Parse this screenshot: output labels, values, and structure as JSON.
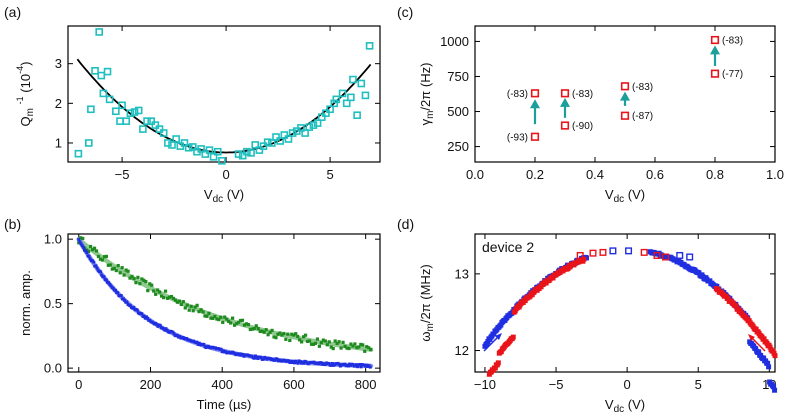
{
  "figure": {
    "panels": [
      "(a)",
      "(b)",
      "(c)",
      "(d)"
    ],
    "device_label": "device 2"
  },
  "colors": {
    "cyan": "#1fbfbf",
    "teal_arrow": "#1a9f9a",
    "green": "#1f8a1f",
    "light_green": "#8fc98f",
    "blue": "#1f2fe0",
    "light_blue": "#8b93ee",
    "red": "#e8141a",
    "black": "#000000"
  },
  "chart_data": [
    {
      "id": "a",
      "type": "scatter",
      "xlabel": "V_dc (V)",
      "ylabel": "Q_m^-1 (10^-4)",
      "xlim": [
        -7.6,
        7.4
      ],
      "ylim": [
        0.52,
        3.95
      ],
      "xticks": [
        -5,
        0,
        5
      ],
      "yticks": [
        1,
        2,
        3
      ],
      "xtick_labels": [
        "−5",
        "0",
        "5"
      ],
      "ytick_labels": [
        "1",
        "2",
        "3"
      ],
      "series": [
        {
          "marker": "open-square",
          "color": "cyan",
          "points": [
            [
              -7.1,
              0.73
            ],
            [
              -6.6,
              1.0
            ],
            [
              -6.5,
              1.85
            ],
            [
              -6.3,
              2.82
            ],
            [
              -6.1,
              3.8
            ],
            [
              -6.0,
              2.7
            ],
            [
              -5.9,
              2.25
            ],
            [
              -5.7,
              2.8
            ],
            [
              -5.6,
              2.1
            ],
            [
              -5.3,
              1.8
            ],
            [
              -5.1,
              1.55
            ],
            [
              -5.0,
              1.95
            ],
            [
              -4.8,
              1.55
            ],
            [
              -4.6,
              1.75
            ],
            [
              -4.4,
              1.78
            ],
            [
              -4.2,
              1.82
            ],
            [
              -4.0,
              1.35
            ],
            [
              -3.8,
              1.55
            ],
            [
              -3.6,
              1.55
            ],
            [
              -3.4,
              1.45
            ],
            [
              -3.2,
              1.35
            ],
            [
              -3.0,
              1.25
            ],
            [
              -2.8,
              1.0
            ],
            [
              -2.6,
              0.95
            ],
            [
              -2.4,
              1.1
            ],
            [
              -2.2,
              0.92
            ],
            [
              -2.0,
              1.0
            ],
            [
              -1.8,
              0.88
            ],
            [
              -1.6,
              0.9
            ],
            [
              -1.4,
              0.78
            ],
            [
              -1.2,
              0.85
            ],
            [
              -1.0,
              0.72
            ],
            [
              -0.8,
              0.82
            ],
            [
              -0.6,
              0.65
            ],
            [
              -0.4,
              0.78
            ],
            [
              -0.2,
              0.55
            ],
            [
              0.6,
              0.72
            ],
            [
              0.8,
              0.68
            ],
            [
              1.0,
              0.78
            ],
            [
              1.2,
              0.75
            ],
            [
              1.4,
              0.95
            ],
            [
              1.6,
              0.82
            ],
            [
              1.8,
              0.92
            ],
            [
              2.0,
              1.02
            ],
            [
              2.2,
              1.0
            ],
            [
              2.4,
              1.15
            ],
            [
              2.6,
              1.05
            ],
            [
              2.8,
              1.2
            ],
            [
              3.0,
              1.1
            ],
            [
              3.2,
              1.25
            ],
            [
              3.4,
              1.3
            ],
            [
              3.6,
              1.38
            ],
            [
              3.8,
              1.25
            ],
            [
              4.0,
              1.4
            ],
            [
              4.2,
              1.45
            ],
            [
              4.4,
              1.5
            ],
            [
              4.6,
              1.65
            ],
            [
              4.8,
              1.75
            ],
            [
              5.0,
              1.85
            ],
            [
              5.2,
              2.0
            ],
            [
              5.3,
              2.1
            ],
            [
              5.6,
              2.25
            ],
            [
              5.8,
              2.0
            ],
            [
              6.0,
              2.15
            ],
            [
              6.1,
              2.6
            ],
            [
              6.3,
              1.7
            ],
            [
              6.5,
              2.5
            ],
            [
              6.7,
              2.2
            ],
            [
              6.9,
              3.45
            ]
          ]
        },
        {
          "name": "fit",
          "style": "line",
          "color": "black",
          "function": "0.76 + 0.046*x^2"
        }
      ]
    },
    {
      "id": "b",
      "type": "line",
      "xlabel": "Time (µs)",
      "ylabel": "norm. amp.",
      "xlim": [
        -30,
        840
      ],
      "ylim": [
        -0.03,
        1.04
      ],
      "xticks": [
        0,
        200,
        400,
        600,
        800
      ],
      "yticks": [
        0.0,
        0.5,
        1.0
      ],
      "xtick_labels": [
        "0",
        "200",
        "400",
        "600",
        "800"
      ],
      "ytick_labels": [
        "0.0",
        "0.5",
        "1.0"
      ],
      "series": [
        {
          "color": "green",
          "fit_color": "light_green",
          "decay_tau_us": 420
        },
        {
          "color": "blue",
          "fit_color": "light_blue",
          "decay_tau_us": 200
        }
      ]
    },
    {
      "id": "c",
      "type": "scatter",
      "xlabel": "V_dc (V)",
      "ylabel": "γ_m/2π (Hz)",
      "xlim": [
        0.0,
        1.0
      ],
      "ylim": [
        140,
        1110
      ],
      "xticks": [
        0.0,
        0.2,
        0.4,
        0.6,
        0.8,
        1.0
      ],
      "yticks": [
        250,
        500,
        750,
        1000
      ],
      "xtick_labels": [
        "0.0",
        "0.2",
        "0.4",
        "0.6",
        "0.8",
        "1.0"
      ],
      "ytick_labels": [
        "250",
        "500",
        "750",
        "1000"
      ],
      "points": [
        {
          "x": 0.2,
          "y": 630,
          "label": "(-83)",
          "label_side": "left"
        },
        {
          "x": 0.2,
          "y": 320,
          "label": "(-93)",
          "label_side": "left"
        },
        {
          "x": 0.3,
          "y": 630,
          "label": "(-83)",
          "label_side": "right"
        },
        {
          "x": 0.3,
          "y": 400,
          "label": "(-90)",
          "label_side": "right"
        },
        {
          "x": 0.5,
          "y": 680,
          "label": "(-83)",
          "label_side": "right"
        },
        {
          "x": 0.5,
          "y": 470,
          "label": "(-87)",
          "label_side": "right"
        },
        {
          "x": 0.8,
          "y": 1010,
          "label": "(-83)",
          "label_side": "right"
        },
        {
          "x": 0.8,
          "y": 770,
          "label": "(-77)",
          "label_side": "right"
        }
      ],
      "arrows": [
        {
          "x": 0.2,
          "from": 410,
          "to": 580
        },
        {
          "x": 0.3,
          "from": 455,
          "to": 590
        },
        {
          "x": 0.5,
          "from": 540,
          "to": 635
        },
        {
          "x": 0.8,
          "from": 825,
          "to": 965
        }
      ]
    },
    {
      "id": "d",
      "type": "scatter",
      "xlabel": "V_dc (V)",
      "ylabel": "ω_m/2π (MHz)",
      "xlim": [
        -10.7,
        10.4
      ],
      "ylim": [
        11.72,
        13.52
      ],
      "xticks": [
        -10,
        -5,
        0,
        5,
        10
      ],
      "yticks": [
        12,
        13
      ],
      "xtick_labels": [
        "−10",
        "−5",
        "0",
        "5",
        "10"
      ],
      "ytick_labels": [
        "12",
        "13"
      ],
      "model": "13.32 - 0.0125*x^2",
      "series": [
        {
          "color": "blue",
          "sweep": "up",
          "x_start": -10.0,
          "x_end": 10.4
        },
        {
          "color": "red",
          "sweep": "down",
          "x_start": 10.4,
          "x_end": -9.7
        }
      ]
    }
  ]
}
